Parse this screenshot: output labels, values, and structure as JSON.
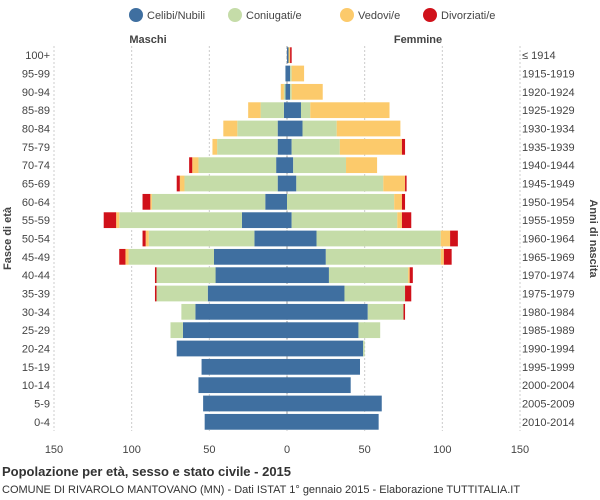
{
  "chart_data": {
    "type": "bar",
    "orientation": "horizontal",
    "stacked": true,
    "title": "Popolazione per età, sesso e stato civile - 2015",
    "subtitle": "COMUNE DI RIVAROLO MANTOVANO (MN) - Dati ISTAT 1° gennaio 2015 - Elaborazione TUTTITALIA.IT",
    "left_header": "Maschi",
    "right_header": "Femmine",
    "ylabel_left": "Fasce di età",
    "ylabel_right": "Anni di nascita",
    "xlim": [
      -150,
      150
    ],
    "x_ticks": [
      -150,
      -100,
      -50,
      0,
      50,
      100,
      150
    ],
    "x_tick_labels": [
      "150",
      "100",
      "50",
      "0",
      "50",
      "100",
      "150"
    ],
    "grid": true,
    "legend_position": "top",
    "legend": [
      {
        "name": "Celibi/Nubili",
        "color": "#3f6fa0"
      },
      {
        "name": "Coniugati/e",
        "color": "#c5dca8"
      },
      {
        "name": "Vedovi/e",
        "color": "#fcca6b"
      },
      {
        "name": "Divorziati/e",
        "color": "#d0111a"
      }
    ],
    "age_groups": [
      "100+",
      "95-99",
      "90-94",
      "85-89",
      "80-84",
      "75-79",
      "70-74",
      "65-69",
      "60-64",
      "55-59",
      "50-54",
      "45-49",
      "40-44",
      "35-39",
      "30-34",
      "25-29",
      "20-24",
      "15-19",
      "10-14",
      "5-9",
      "0-4"
    ],
    "birth_years": [
      "≤ 1914",
      "1915-1919",
      "1920-1924",
      "1925-1929",
      "1930-1934",
      "1935-1939",
      "1940-1944",
      "1945-1949",
      "1950-1954",
      "1955-1959",
      "1960-1964",
      "1965-1969",
      "1970-1974",
      "1975-1979",
      "1980-1984",
      "1985-1989",
      "1990-1994",
      "1995-1999",
      "2000-2004",
      "2005-2009",
      "2010-2014"
    ],
    "males": {
      "celibi": [
        0,
        1,
        1,
        2,
        6,
        6,
        7,
        6,
        14,
        29,
        21,
        47,
        46,
        51,
        59,
        67,
        71,
        55,
        57,
        54,
        53
      ],
      "coniugati": [
        0,
        0,
        1,
        15,
        26,
        39,
        50,
        60,
        73,
        79,
        68,
        55,
        38,
        33,
        9,
        8,
        0,
        0,
        0,
        0,
        0
      ],
      "vedovi": [
        0,
        0,
        2,
        8,
        9,
        3,
        4,
        3,
        1,
        2,
        2,
        2,
        0,
        0,
        0,
        0,
        0,
        0,
        0,
        0,
        0
      ],
      "divorziati": [
        0,
        0,
        0,
        0,
        0,
        0,
        2,
        2,
        5,
        8,
        2,
        4,
        1,
        1,
        0,
        0,
        0,
        0,
        0,
        0,
        0
      ]
    },
    "females": {
      "nubili": [
        1,
        2,
        2,
        9,
        10,
        3,
        4,
        6,
        0,
        3,
        19,
        25,
        27,
        37,
        52,
        46,
        49,
        47,
        41,
        61,
        59
      ],
      "coniugate": [
        0,
        1,
        1,
        6,
        22,
        31,
        34,
        56,
        69,
        68,
        80,
        74,
        51,
        39,
        23,
        14,
        1,
        0,
        0,
        0,
        0
      ],
      "vedove": [
        1,
        8,
        20,
        51,
        41,
        40,
        20,
        14,
        5,
        3,
        6,
        2,
        1,
        0,
        0,
        0,
        0,
        0,
        0,
        0,
        0
      ],
      "divorziate": [
        1,
        0,
        0,
        0,
        0,
        2,
        0,
        1,
        2,
        6,
        5,
        5,
        2,
        4,
        1,
        0,
        0,
        0,
        0,
        0,
        0
      ]
    }
  }
}
